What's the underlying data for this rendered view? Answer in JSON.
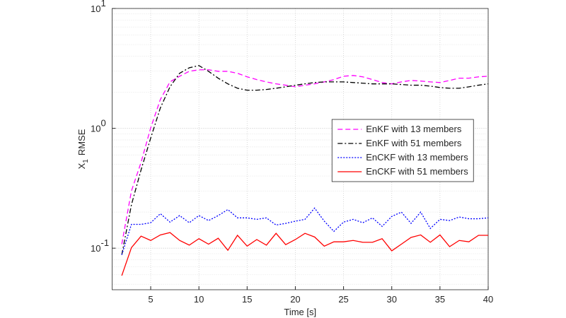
{
  "chart_data": {
    "type": "line",
    "xlabel": "Time [s]",
    "ylabel": {
      "text": "X",
      "subscript": "1",
      "rest": "RMSE"
    },
    "x": [
      2,
      3,
      4,
      5,
      6,
      7,
      8,
      9,
      10,
      11,
      12,
      13,
      14,
      15,
      16,
      17,
      18,
      19,
      20,
      21,
      22,
      23,
      24,
      25,
      26,
      27,
      28,
      29,
      30,
      31,
      32,
      33,
      34,
      35,
      36,
      37,
      38,
      39,
      40
    ],
    "series": [
      {
        "name": "EnKF with 13 members",
        "color": "#ff00ff",
        "linestyle": "--",
        "values": [
          0.108,
          0.3,
          0.52,
          1.01,
          1.74,
          2.44,
          2.72,
          2.99,
          3.08,
          3.08,
          2.99,
          2.99,
          2.88,
          2.69,
          2.55,
          2.44,
          2.35,
          2.29,
          2.22,
          2.29,
          2.35,
          2.44,
          2.55,
          2.72,
          2.76,
          2.69,
          2.55,
          2.41,
          2.35,
          2.44,
          2.51,
          2.48,
          2.44,
          2.41,
          2.51,
          2.62,
          2.62,
          2.69,
          2.72
        ]
      },
      {
        "name": "EnKF with 51 members",
        "color": "#000000",
        "linestyle": "-.",
        "values": [
          0.088,
          0.23,
          0.45,
          0.83,
          1.48,
          2.22,
          2.88,
          3.2,
          3.34,
          2.99,
          2.62,
          2.35,
          2.16,
          2.08,
          2.08,
          2.11,
          2.16,
          2.22,
          2.29,
          2.35,
          2.41,
          2.44,
          2.44,
          2.44,
          2.41,
          2.38,
          2.35,
          2.35,
          2.35,
          2.32,
          2.29,
          2.29,
          2.25,
          2.19,
          2.16,
          2.16,
          2.22,
          2.29,
          2.35
        ]
      },
      {
        "name": "EnCKF with 13 members",
        "color": "#0000ff",
        "linestyle": ":",
        "values": [
          0.088,
          0.158,
          0.158,
          0.163,
          0.194,
          0.165,
          0.187,
          0.163,
          0.187,
          0.17,
          0.187,
          0.21,
          0.179,
          0.179,
          0.174,
          0.179,
          0.156,
          0.161,
          0.168,
          0.174,
          0.216,
          0.168,
          0.138,
          0.165,
          0.174,
          0.163,
          0.179,
          0.152,
          0.184,
          0.2,
          0.161,
          0.2,
          0.146,
          0.174,
          0.17,
          0.182,
          0.176,
          0.176,
          0.179
        ]
      },
      {
        "name": "EnCKF with 51 members",
        "color": "#ff0000",
        "linestyle": "-",
        "values": [
          0.059,
          0.101,
          0.126,
          0.116,
          0.129,
          0.135,
          0.116,
          0.106,
          0.12,
          0.108,
          0.121,
          0.096,
          0.128,
          0.104,
          0.118,
          0.106,
          0.133,
          0.107,
          0.118,
          0.133,
          0.124,
          0.104,
          0.113,
          0.113,
          0.116,
          0.112,
          0.112,
          0.12,
          0.095,
          0.108,
          0.123,
          0.129,
          0.112,
          0.129,
          0.103,
          0.116,
          0.113,
          0.128,
          0.128
        ]
      }
    ],
    "xlim": [
      1,
      40
    ],
    "xticks": [
      5,
      10,
      15,
      20,
      25,
      30,
      35,
      40
    ],
    "ylim": [
      0.045,
      10
    ],
    "yticks": [
      {
        "value": 0.1,
        "label": "10",
        "exponent": "-1"
      },
      {
        "value": 1,
        "label": "10",
        "exponent": "0"
      },
      {
        "value": 10,
        "label": "10",
        "exponent": "1"
      }
    ],
    "ylog": true,
    "grid": true,
    "minor_grid": true,
    "legend_position": "center"
  }
}
